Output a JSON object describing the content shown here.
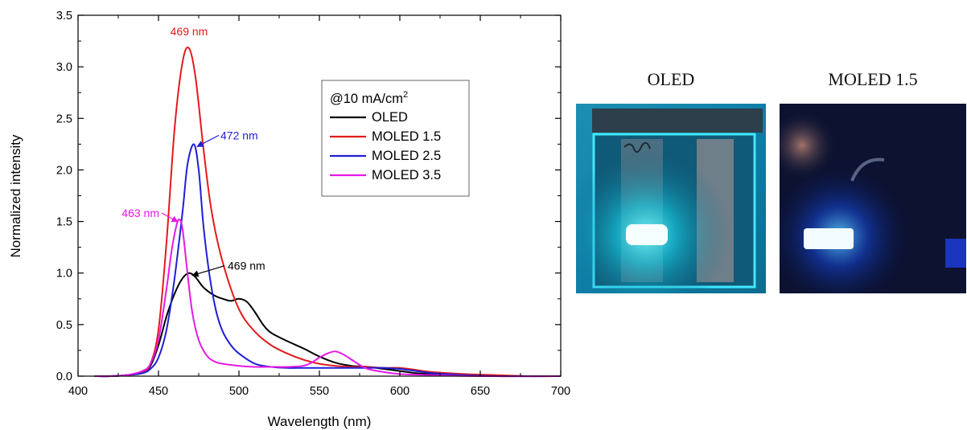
{
  "chart_data": {
    "type": "line",
    "xlabel": "Wavelength (nm)",
    "ylabel": "Normalized intensity",
    "xlim": [
      400,
      700
    ],
    "ylim": [
      0,
      3.5
    ],
    "xticks": [
      "400",
      "450",
      "500",
      "550",
      "600",
      "650",
      "700"
    ],
    "yticks": [
      "0.0",
      "0.5",
      "1.0",
      "1.5",
      "2.0",
      "2.5",
      "3.0",
      "3.5"
    ],
    "legend": {
      "title_main": "@10 mA/cm",
      "title_sup": "2",
      "placement": "top-right"
    },
    "series": [
      {
        "name": "OLED",
        "color": "#000000",
        "x": [
          410,
          420,
          430,
          440,
          445,
          450,
          455,
          460,
          465,
          469,
          473,
          478,
          485,
          490,
          495,
          500,
          505,
          510,
          515,
          520,
          530,
          540,
          550,
          560,
          570,
          580,
          590,
          600,
          610,
          620,
          640,
          660,
          680,
          700
        ],
        "y": [
          0.0,
          0.0,
          0.01,
          0.03,
          0.1,
          0.3,
          0.58,
          0.8,
          0.95,
          1.0,
          0.96,
          0.86,
          0.78,
          0.75,
          0.73,
          0.75,
          0.72,
          0.62,
          0.5,
          0.42,
          0.34,
          0.27,
          0.19,
          0.13,
          0.1,
          0.09,
          0.07,
          0.05,
          0.03,
          0.02,
          0.01,
          0.0,
          0.0,
          0.0
        ]
      },
      {
        "name": "MOLED 1.5",
        "color": "#e31a1c",
        "x": [
          410,
          420,
          430,
          440,
          445,
          450,
          455,
          460,
          465,
          469,
          473,
          478,
          483,
          490,
          500,
          510,
          520,
          530,
          540,
          550,
          560,
          570,
          580,
          590,
          600,
          610,
          620,
          640,
          660,
          680,
          700
        ],
        "y": [
          0.0,
          0.0,
          0.01,
          0.04,
          0.12,
          0.45,
          1.3,
          2.4,
          3.05,
          3.18,
          2.9,
          2.2,
          1.6,
          1.1,
          0.65,
          0.43,
          0.3,
          0.22,
          0.16,
          0.12,
          0.1,
          0.09,
          0.09,
          0.08,
          0.08,
          0.06,
          0.04,
          0.02,
          0.01,
          0.0,
          0.0
        ]
      },
      {
        "name": "MOLED 2.5",
        "color": "#1f1fd6",
        "x": [
          410,
          420,
          430,
          440,
          445,
          450,
          455,
          460,
          465,
          468,
          472,
          475,
          478,
          482,
          486,
          490,
          495,
          500,
          510,
          520,
          530,
          540,
          550,
          560,
          570,
          580,
          590,
          600,
          610,
          620,
          640,
          660,
          700
        ],
        "y": [
          0.0,
          0.0,
          0.01,
          0.03,
          0.07,
          0.18,
          0.45,
          0.95,
          1.6,
          2.05,
          2.25,
          2.0,
          1.45,
          0.95,
          0.62,
          0.43,
          0.3,
          0.22,
          0.12,
          0.09,
          0.08,
          0.08,
          0.08,
          0.08,
          0.08,
          0.08,
          0.08,
          0.07,
          0.05,
          0.03,
          0.01,
          0.0,
          0.0
        ]
      },
      {
        "name": "MOLED 3.5",
        "color": "#e619e6",
        "x": [
          410,
          420,
          430,
          440,
          445,
          450,
          455,
          458,
          461,
          463,
          465,
          468,
          471,
          475,
          480,
          485,
          490,
          500,
          510,
          520,
          530,
          540,
          545,
          550,
          555,
          560,
          565,
          570,
          575,
          580,
          590,
          600,
          620,
          650,
          700
        ],
        "y": [
          0.0,
          0.0,
          0.01,
          0.05,
          0.12,
          0.35,
          0.85,
          1.2,
          1.45,
          1.52,
          1.42,
          1.0,
          0.62,
          0.35,
          0.2,
          0.14,
          0.12,
          0.1,
          0.09,
          0.09,
          0.09,
          0.1,
          0.13,
          0.18,
          0.22,
          0.24,
          0.21,
          0.16,
          0.11,
          0.07,
          0.04,
          0.02,
          0.01,
          0.0,
          0.0
        ]
      }
    ],
    "annotations": [
      {
        "text": "469 nm",
        "color": "#e31a1c",
        "x": 469,
        "y": 3.18,
        "arrow": false
      },
      {
        "text": "472 nm",
        "color": "#1f1fd6",
        "x": 472,
        "y": 2.25,
        "arrow": true
      },
      {
        "text": "463 nm",
        "color": "#e619e6",
        "x": 463,
        "y": 1.52,
        "arrow": true
      },
      {
        "text": "469 nm",
        "color": "#000000",
        "x": 469,
        "y": 1.0,
        "arrow": true
      }
    ]
  },
  "photos": [
    {
      "label": "OLED"
    },
    {
      "label": "MOLED 1.5"
    }
  ]
}
